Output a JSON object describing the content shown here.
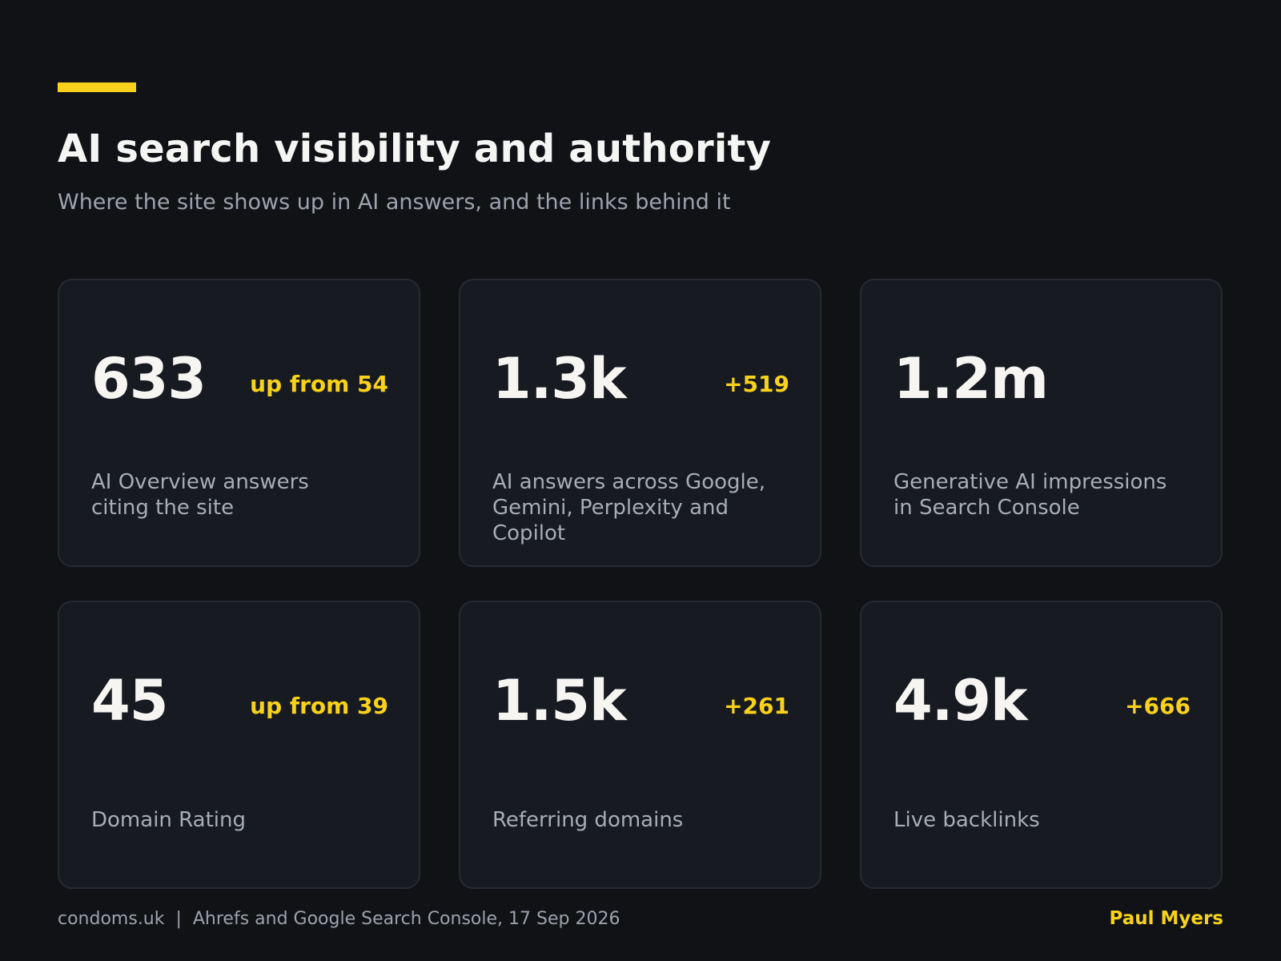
{
  "header": {
    "title": "AI search visibility and authority",
    "subtitle": "Where the site shows up in AI answers, and the links behind it",
    "accent_color": "#f8d21a"
  },
  "cards": [
    {
      "value": "633",
      "delta": "up from 54",
      "label": "AI Overview answers\nciting the site"
    },
    {
      "value": "1.3k",
      "delta": "+519",
      "label": "AI answers across Google,\nGemini, Perplexity and Copilot"
    },
    {
      "value": "1.2m",
      "delta": "",
      "label": "Generative AI impressions\nin Search Console"
    },
    {
      "value": "45",
      "delta": "up from 39",
      "label": "Domain Rating"
    },
    {
      "value": "1.5k",
      "delta": "+261",
      "label": "Referring domains"
    },
    {
      "value": "4.9k",
      "delta": "+666",
      "label": "Live backlinks"
    }
  ],
  "footer": {
    "source": "condoms.uk  |  Ahrefs and Google Search Console, 17 Sep 2026",
    "author": "Paul Myers"
  }
}
